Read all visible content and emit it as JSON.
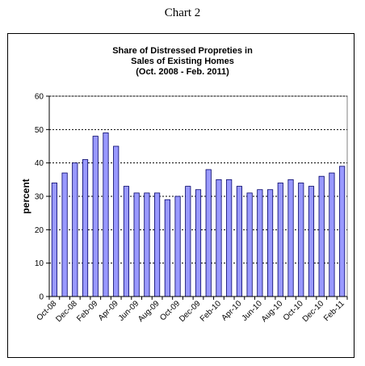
{
  "caption": "Chart 2",
  "chart_data": {
    "type": "bar",
    "title_lines": [
      "Share of Distressed  Propreties in",
      "Sales of Existing Homes",
      "(Oct. 2008 - Feb. 2011)"
    ],
    "ylabel": "percent",
    "xlabel": "",
    "ylim": [
      0,
      60
    ],
    "yticks": [
      0,
      10,
      20,
      30,
      40,
      50,
      60
    ],
    "grid": "horizontal dashed",
    "legend": "none",
    "bar_color": "#9999ff",
    "categories": [
      "Oct-08",
      "Nov-08",
      "Dec-08",
      "Jan-09",
      "Feb-09",
      "Mar-09",
      "Apr-09",
      "May-09",
      "Jun-09",
      "Jul-09",
      "Aug-09",
      "Sep-09",
      "Oct-09",
      "Nov-09",
      "Dec-09",
      "Jan-10",
      "Feb-10",
      "Mar-10",
      "Apr-10",
      "May-10",
      "Jun-10",
      "Jul-10",
      "Aug-10",
      "Sep-10",
      "Oct-10",
      "Nov-10",
      "Dec-10",
      "Jan-11",
      "Feb-11"
    ],
    "shown_tick_labels": [
      "Oct-08",
      "Dec-08",
      "Feb-09",
      "Apr-09",
      "Jun-09",
      "Aug-09",
      "Oct-09",
      "Dec-09",
      "Feb-10",
      "Apr-10",
      "Jun-10",
      "Aug-10",
      "Oct-10",
      "Dec-10",
      "Feb-11"
    ],
    "values": [
      34,
      37,
      40,
      41,
      48,
      49,
      45,
      33,
      31,
      31,
      31,
      29,
      30,
      33,
      32,
      38,
      35,
      35,
      33,
      31,
      32,
      32,
      34,
      35,
      34,
      33,
      36,
      37,
      39
    ]
  }
}
